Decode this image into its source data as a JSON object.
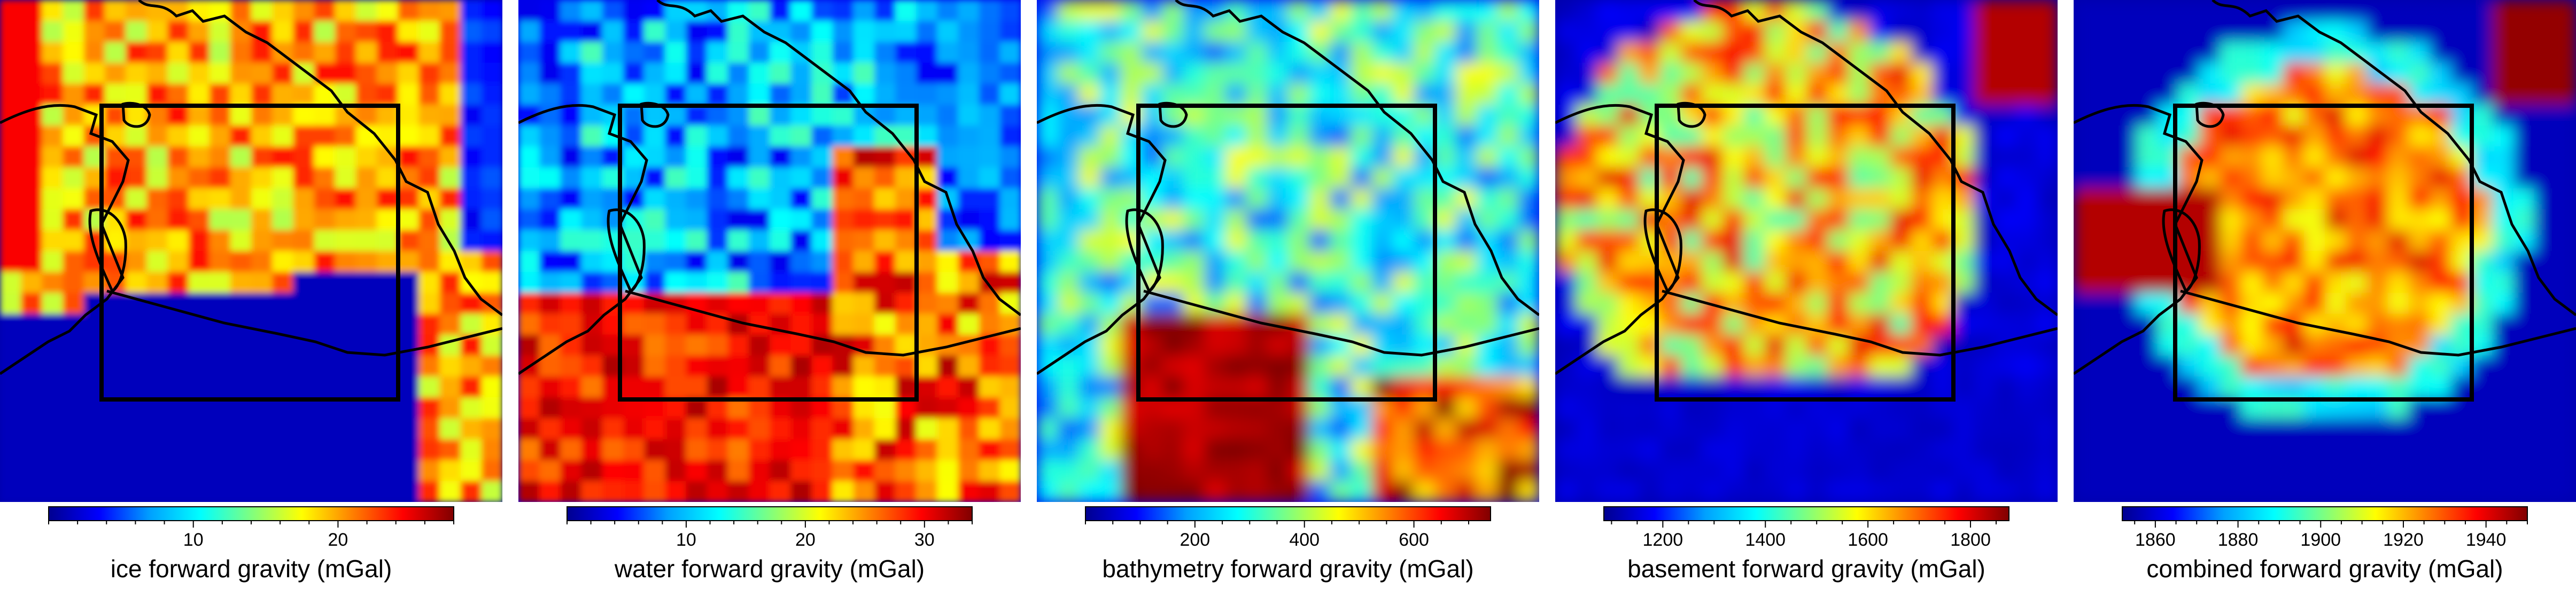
{
  "panels": [
    {
      "label": "ice forward gravity (mGal)",
      "colorbar": {
        "min": 0,
        "max": 28,
        "ticks": [
          10,
          20
        ],
        "minor_step": 2
      },
      "seed": 11,
      "field": "ice"
    },
    {
      "label": "water forward gravity (mGal)",
      "colorbar": {
        "min": 0,
        "max": 34,
        "ticks": [
          10,
          20,
          30
        ],
        "minor_step": 2
      },
      "seed": 23,
      "field": "water"
    },
    {
      "label": "bathymetry forward gravity (mGal)",
      "colorbar": {
        "min": 0,
        "max": 740,
        "ticks": [
          200,
          400,
          600
        ],
        "minor_step": 50
      },
      "seed": 37,
      "field": "bathy"
    },
    {
      "label": "basement forward gravity (mGal)",
      "colorbar": {
        "min": 1085,
        "max": 1875,
        "ticks": [
          1200,
          1400,
          1600,
          1800
        ],
        "minor_step": 50
      },
      "seed": 41,
      "field": "basement"
    },
    {
      "label": "combined forward gravity (mGal)",
      "colorbar": {
        "min": 1852,
        "max": 1950,
        "ticks": [
          1860,
          1880,
          1900,
          1920,
          1940
        ],
        "minor_step": 5
      },
      "seed": 53,
      "field": "combined"
    }
  ],
  "colormap": [
    "#00008f",
    "#0000ff",
    "#00a0ff",
    "#00ffff",
    "#7fff7f",
    "#ffff00",
    "#ff8000",
    "#ff0000",
    "#800000"
  ]
}
